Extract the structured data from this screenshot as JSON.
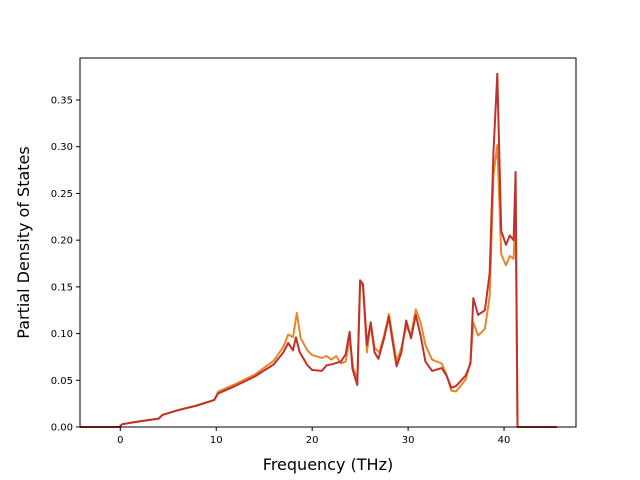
{
  "chart_data": {
    "type": "line",
    "title": "",
    "xlabel": "Frequency (THz)",
    "ylabel": "Partial Density of States",
    "xlim": [
      -4.2,
      47.5
    ],
    "ylim": [
      0,
      0.395
    ],
    "xticks": [
      0,
      10,
      20,
      30,
      40
    ],
    "yticks": [
      0.0,
      0.05,
      0.1,
      0.15,
      0.2,
      0.25,
      0.3,
      0.35
    ],
    "ytick_labels": [
      "0.00",
      "0.05",
      "0.10",
      "0.15",
      "0.20",
      "0.25",
      "0.30",
      "0.35"
    ],
    "grid": false,
    "legend": "none",
    "series": [
      {
        "color": "#e8862a",
        "points": [
          [
            -4.2,
            0.0
          ],
          [
            -0.1,
            0.0
          ],
          [
            0.2,
            0.003
          ],
          [
            2.0,
            0.006
          ],
          [
            4.0,
            0.009
          ],
          [
            4.4,
            0.013
          ],
          [
            6.0,
            0.018
          ],
          [
            8.0,
            0.023
          ],
          [
            9.8,
            0.029
          ],
          [
            10.2,
            0.038
          ],
          [
            12.0,
            0.046
          ],
          [
            14.0,
            0.056
          ],
          [
            16.0,
            0.071
          ],
          [
            17.0,
            0.086
          ],
          [
            17.5,
            0.099
          ],
          [
            18.0,
            0.096
          ],
          [
            18.4,
            0.122
          ],
          [
            18.8,
            0.095
          ],
          [
            19.5,
            0.082
          ],
          [
            20.0,
            0.077
          ],
          [
            21.0,
            0.074
          ],
          [
            21.5,
            0.076
          ],
          [
            22.0,
            0.072
          ],
          [
            22.5,
            0.076
          ],
          [
            23.0,
            0.068
          ],
          [
            23.5,
            0.07
          ],
          [
            23.9,
            0.095
          ],
          [
            24.3,
            0.062
          ],
          [
            24.7,
            0.052
          ],
          [
            25.0,
            0.155
          ],
          [
            25.3,
            0.15
          ],
          [
            25.7,
            0.08
          ],
          [
            26.1,
            0.112
          ],
          [
            26.5,
            0.085
          ],
          [
            27.0,
            0.08
          ],
          [
            27.5,
            0.098
          ],
          [
            28.0,
            0.121
          ],
          [
            28.4,
            0.095
          ],
          [
            28.8,
            0.07
          ],
          [
            29.3,
            0.085
          ],
          [
            29.8,
            0.108
          ],
          [
            30.3,
            0.098
          ],
          [
            30.8,
            0.126
          ],
          [
            31.3,
            0.112
          ],
          [
            31.8,
            0.088
          ],
          [
            32.5,
            0.072
          ],
          [
            33.5,
            0.068
          ],
          [
            34.0,
            0.056
          ],
          [
            34.5,
            0.039
          ],
          [
            35.0,
            0.038
          ],
          [
            36.0,
            0.051
          ],
          [
            36.5,
            0.07
          ],
          [
            36.8,
            0.112
          ],
          [
            37.3,
            0.098
          ],
          [
            38.0,
            0.105
          ],
          [
            38.5,
            0.14
          ],
          [
            38.9,
            0.27
          ],
          [
            39.3,
            0.302
          ],
          [
            39.7,
            0.185
          ],
          [
            40.2,
            0.173
          ],
          [
            40.6,
            0.183
          ],
          [
            41.0,
            0.18
          ],
          [
            41.2,
            0.23
          ],
          [
            41.4,
            0.0
          ],
          [
            42.0,
            0.0
          ],
          [
            45.5,
            0.0
          ]
        ]
      },
      {
        "color": "#c0312b",
        "points": [
          [
            -4.2,
            0.0
          ],
          [
            -0.1,
            0.0
          ],
          [
            0.2,
            0.003
          ],
          [
            2.0,
            0.006
          ],
          [
            4.0,
            0.009
          ],
          [
            4.4,
            0.013
          ],
          [
            6.0,
            0.018
          ],
          [
            8.0,
            0.023
          ],
          [
            9.8,
            0.029
          ],
          [
            10.2,
            0.036
          ],
          [
            12.0,
            0.044
          ],
          [
            14.0,
            0.054
          ],
          [
            16.0,
            0.067
          ],
          [
            17.0,
            0.08
          ],
          [
            17.5,
            0.09
          ],
          [
            18.0,
            0.082
          ],
          [
            18.3,
            0.096
          ],
          [
            18.7,
            0.08
          ],
          [
            19.5,
            0.066
          ],
          [
            20.0,
            0.061
          ],
          [
            21.0,
            0.06
          ],
          [
            21.5,
            0.066
          ],
          [
            22.0,
            0.067
          ],
          [
            23.0,
            0.07
          ],
          [
            23.5,
            0.078
          ],
          [
            23.9,
            0.102
          ],
          [
            24.2,
            0.062
          ],
          [
            24.7,
            0.045
          ],
          [
            25.0,
            0.157
          ],
          [
            25.3,
            0.153
          ],
          [
            25.7,
            0.088
          ],
          [
            26.1,
            0.112
          ],
          [
            26.5,
            0.08
          ],
          [
            26.9,
            0.073
          ],
          [
            27.5,
            0.095
          ],
          [
            28.0,
            0.118
          ],
          [
            28.4,
            0.09
          ],
          [
            28.8,
            0.065
          ],
          [
            29.3,
            0.08
          ],
          [
            29.8,
            0.114
          ],
          [
            30.3,
            0.095
          ],
          [
            30.8,
            0.12
          ],
          [
            31.3,
            0.098
          ],
          [
            31.8,
            0.07
          ],
          [
            32.5,
            0.06
          ],
          [
            33.5,
            0.063
          ],
          [
            34.0,
            0.055
          ],
          [
            34.5,
            0.042
          ],
          [
            35.0,
            0.044
          ],
          [
            36.0,
            0.055
          ],
          [
            36.5,
            0.068
          ],
          [
            36.8,
            0.138
          ],
          [
            37.3,
            0.12
          ],
          [
            38.0,
            0.125
          ],
          [
            38.5,
            0.165
          ],
          [
            38.9,
            0.295
          ],
          [
            39.3,
            0.378
          ],
          [
            39.7,
            0.21
          ],
          [
            40.2,
            0.195
          ],
          [
            40.6,
            0.205
          ],
          [
            41.0,
            0.2
          ],
          [
            41.2,
            0.273
          ],
          [
            41.4,
            0.0
          ],
          [
            42.0,
            0.0
          ],
          [
            45.5,
            0.0
          ]
        ]
      }
    ]
  }
}
